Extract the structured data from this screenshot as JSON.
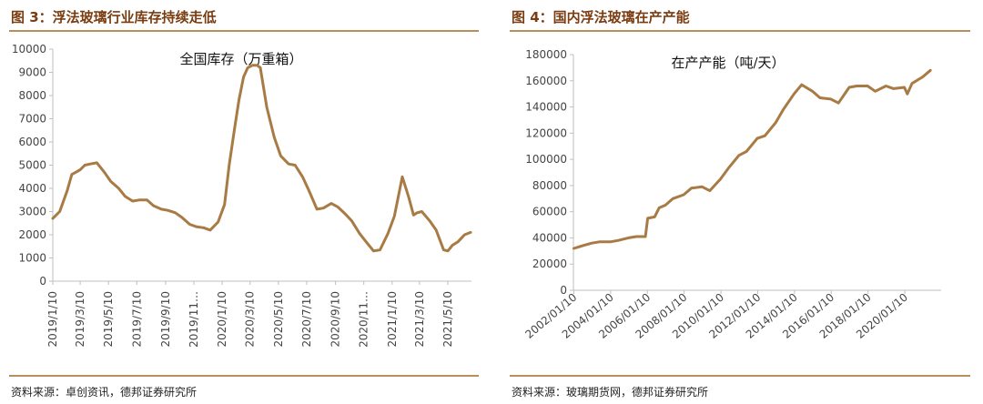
{
  "colors": {
    "line": "#a87a44",
    "accent": "#7a3d12",
    "rule": "#b78f5b",
    "axis": "#bfbfbf"
  },
  "figure3": {
    "title": "图 3：浮法玻璃行业库存持续走低",
    "source": "资料来源：卓创资讯，德邦证券研究所"
  },
  "figure4": {
    "title": "图 4：国内浮法玻璃在产产能",
    "source": "资料来源：玻璃期货网，德邦证券研究所"
  },
  "chart_data": [
    {
      "type": "line",
      "title": "全国库存（万重箱）",
      "ylim": [
        0,
        10000
      ],
      "yticks": [
        0,
        1000,
        2000,
        3000,
        4000,
        5000,
        6000,
        7000,
        8000,
        9000,
        10000
      ],
      "xlim": [
        "2019-01-10",
        "2021-06-30"
      ],
      "xtick_labels": [
        "2019/1/10",
        "2019/3/10",
        "2019/5/10",
        "2019/7/10",
        "2019/9/10",
        "2019/11…",
        "2020/1/10",
        "2020/3/10",
        "2020/5/10",
        "2020/7/10",
        "2020/9/10",
        "2020/11…",
        "2021/1/10",
        "2021/3/10",
        "2021/5/10"
      ],
      "xtick_dates": [
        "2019-01-10",
        "2019-03-10",
        "2019-05-10",
        "2019-07-10",
        "2019-09-10",
        "2019-11-10",
        "2020-01-10",
        "2020-03-10",
        "2020-05-10",
        "2020-07-10",
        "2020-09-10",
        "2020-11-10",
        "2021-01-10",
        "2021-03-10",
        "2021-05-10"
      ],
      "grid": false,
      "series": [
        {
          "x": [
            "2019-01-10",
            "2019-01-25",
            "2019-02-10",
            "2019-02-20",
            "2019-03-01",
            "2019-03-10",
            "2019-03-20",
            "2019-04-01",
            "2019-04-15",
            "2019-05-01",
            "2019-05-15",
            "2019-06-01",
            "2019-06-15",
            "2019-07-01",
            "2019-07-15",
            "2019-08-01",
            "2019-08-15",
            "2019-09-01",
            "2019-09-15",
            "2019-10-01",
            "2019-10-15",
            "2019-11-01",
            "2019-11-15",
            "2019-12-01",
            "2019-12-15",
            "2020-01-01",
            "2020-01-15",
            "2020-01-25",
            "2020-02-05",
            "2020-02-15",
            "2020-02-25",
            "2020-03-05",
            "2020-03-15",
            "2020-03-25",
            "2020-04-01",
            "2020-04-15",
            "2020-05-01",
            "2020-05-15",
            "2020-06-01",
            "2020-06-15",
            "2020-07-01",
            "2020-07-15",
            "2020-08-01",
            "2020-08-15",
            "2020-09-01",
            "2020-09-15",
            "2020-10-01",
            "2020-10-15",
            "2020-11-01",
            "2020-11-15",
            "2020-12-01",
            "2020-12-15",
            "2021-01-01",
            "2021-01-15",
            "2021-02-01",
            "2021-02-15",
            "2021-02-25",
            "2021-03-05",
            "2021-03-15",
            "2021-04-01",
            "2021-04-15",
            "2021-05-01",
            "2021-05-10",
            "2021-05-20",
            "2021-06-01",
            "2021-06-15",
            "2021-06-28"
          ],
          "y": [
            2700,
            3000,
            3900,
            4600,
            4700,
            4800,
            5000,
            5050,
            5100,
            4700,
            4300,
            4000,
            3650,
            3450,
            3500,
            3500,
            3250,
            3100,
            3050,
            2950,
            2750,
            2450,
            2350,
            2300,
            2200,
            2550,
            3300,
            5000,
            6500,
            7800,
            8800,
            9200,
            9300,
            9300,
            9200,
            7500,
            6200,
            5400,
            5050,
            5000,
            4500,
            3900,
            3100,
            3150,
            3350,
            3200,
            2900,
            2600,
            2050,
            1700,
            1300,
            1350,
            2050,
            2800,
            4500,
            3600,
            2850,
            2950,
            3000,
            2600,
            2200,
            1350,
            1300,
            1550,
            1700,
            2000,
            2100
          ]
        }
      ]
    },
    {
      "type": "line",
      "title": "在产产能（吨/天）",
      "ylim": [
        0,
        180000
      ],
      "yticks": [
        0,
        20000,
        40000,
        60000,
        80000,
        100000,
        120000,
        140000,
        160000,
        180000
      ],
      "xlim": [
        "2002-01-01",
        "2022-01-01"
      ],
      "xtick_labels": [
        "2002/01/10",
        "2004/01/10",
        "2006/01/10",
        "2008/01/10",
        "2010/01/10",
        "2012/01/10",
        "2014/01/10",
        "2016/01/10",
        "2018/01/10",
        "2020/01/10"
      ],
      "xtick_dates": [
        "2002-01-10",
        "2004-01-10",
        "2006-01-10",
        "2008-01-10",
        "2010-01-10",
        "2012-01-10",
        "2014-01-10",
        "2016-01-10",
        "2018-01-10",
        "2020-01-10"
      ],
      "grid": false,
      "series": [
        {
          "x": [
            "2002-01-10",
            "2002-07-01",
            "2003-01-01",
            "2003-06-01",
            "2004-01-01",
            "2004-06-01",
            "2005-01-01",
            "2005-06-01",
            "2005-12-01",
            "2006-01-15",
            "2006-06-01",
            "2006-09-01",
            "2007-01-01",
            "2007-06-01",
            "2008-01-01",
            "2008-06-01",
            "2009-01-01",
            "2009-06-01",
            "2010-01-01",
            "2010-06-01",
            "2011-01-01",
            "2011-06-01",
            "2012-01-01",
            "2012-06-01",
            "2013-01-01",
            "2013-06-01",
            "2014-01-01",
            "2014-06-01",
            "2015-01-01",
            "2015-06-01",
            "2016-01-01",
            "2016-06-01",
            "2017-01-01",
            "2017-06-01",
            "2018-01-01",
            "2018-06-01",
            "2019-01-01",
            "2019-06-01",
            "2020-01-01",
            "2020-03-01",
            "2020-06-01",
            "2021-01-01",
            "2021-06-01"
          ],
          "y": [
            32000,
            34000,
            36000,
            37000,
            37000,
            38000,
            40000,
            41000,
            41000,
            55000,
            56000,
            63000,
            65000,
            70000,
            73000,
            78000,
            79000,
            76000,
            85000,
            93000,
            103000,
            106000,
            116000,
            118000,
            128000,
            138000,
            150000,
            157000,
            152000,
            147000,
            146000,
            143000,
            155000,
            156000,
            156000,
            152000,
            156000,
            154000,
            155000,
            150000,
            158000,
            163000,
            168000
          ]
        }
      ]
    }
  ]
}
